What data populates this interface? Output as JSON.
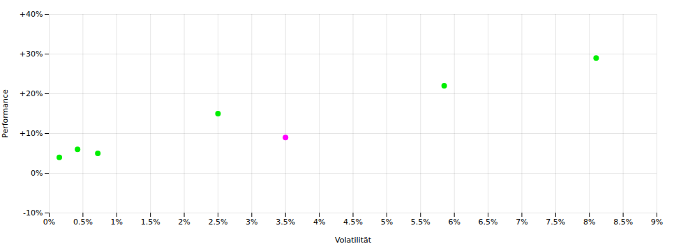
{
  "chart_data": {
    "type": "scatter",
    "xlabel": "Volatilität",
    "ylabel": "Performance",
    "series": [
      {
        "color": "#00ee00",
        "marker": "circle",
        "x": [
          0.15,
          0.42,
          0.72,
          2.5,
          5.85,
          8.1
        ],
        "y": [
          4.0,
          6.0,
          5.0,
          15.0,
          22.0,
          29.0
        ]
      },
      {
        "color": "#ff00ff",
        "marker": "circle",
        "x": [
          3.5
        ],
        "y": [
          9.0
        ]
      }
    ],
    "xlim": [
      0,
      9
    ],
    "ylim": [
      -10,
      40
    ],
    "xticks": [
      {
        "value": 0,
        "label": "0%"
      },
      {
        "value": 0.5,
        "label": "0.5%"
      },
      {
        "value": 1.0,
        "label": "1%"
      },
      {
        "value": 1.5,
        "label": "1.5%"
      },
      {
        "value": 2.0,
        "label": "2%"
      },
      {
        "value": 2.5,
        "label": "2.5%"
      },
      {
        "value": 3.0,
        "label": "3%"
      },
      {
        "value": 3.5,
        "label": "3.5%"
      },
      {
        "value": 4.0,
        "label": "4%"
      },
      {
        "value": 4.5,
        "label": "4.5%"
      },
      {
        "value": 5.0,
        "label": "5%"
      },
      {
        "value": 5.5,
        "label": "5.5%"
      },
      {
        "value": 6.0,
        "label": "6%"
      },
      {
        "value": 6.5,
        "label": "6.5%"
      },
      {
        "value": 7.0,
        "label": "7%"
      },
      {
        "value": 7.5,
        "label": "7.5%"
      },
      {
        "value": 8.0,
        "label": "8%"
      },
      {
        "value": 8.5,
        "label": "8.5%"
      },
      {
        "value": 9.0,
        "label": "9%"
      }
    ],
    "yticks": [
      {
        "value": -10,
        "label": "-10%"
      },
      {
        "value": 0,
        "label": "0%"
      },
      {
        "value": 10,
        "label": "+10%"
      },
      {
        "value": 20,
        "label": "+20%"
      },
      {
        "value": 30,
        "label": "+30%"
      },
      {
        "value": 40,
        "label": "+40%"
      }
    ],
    "grid": true
  }
}
